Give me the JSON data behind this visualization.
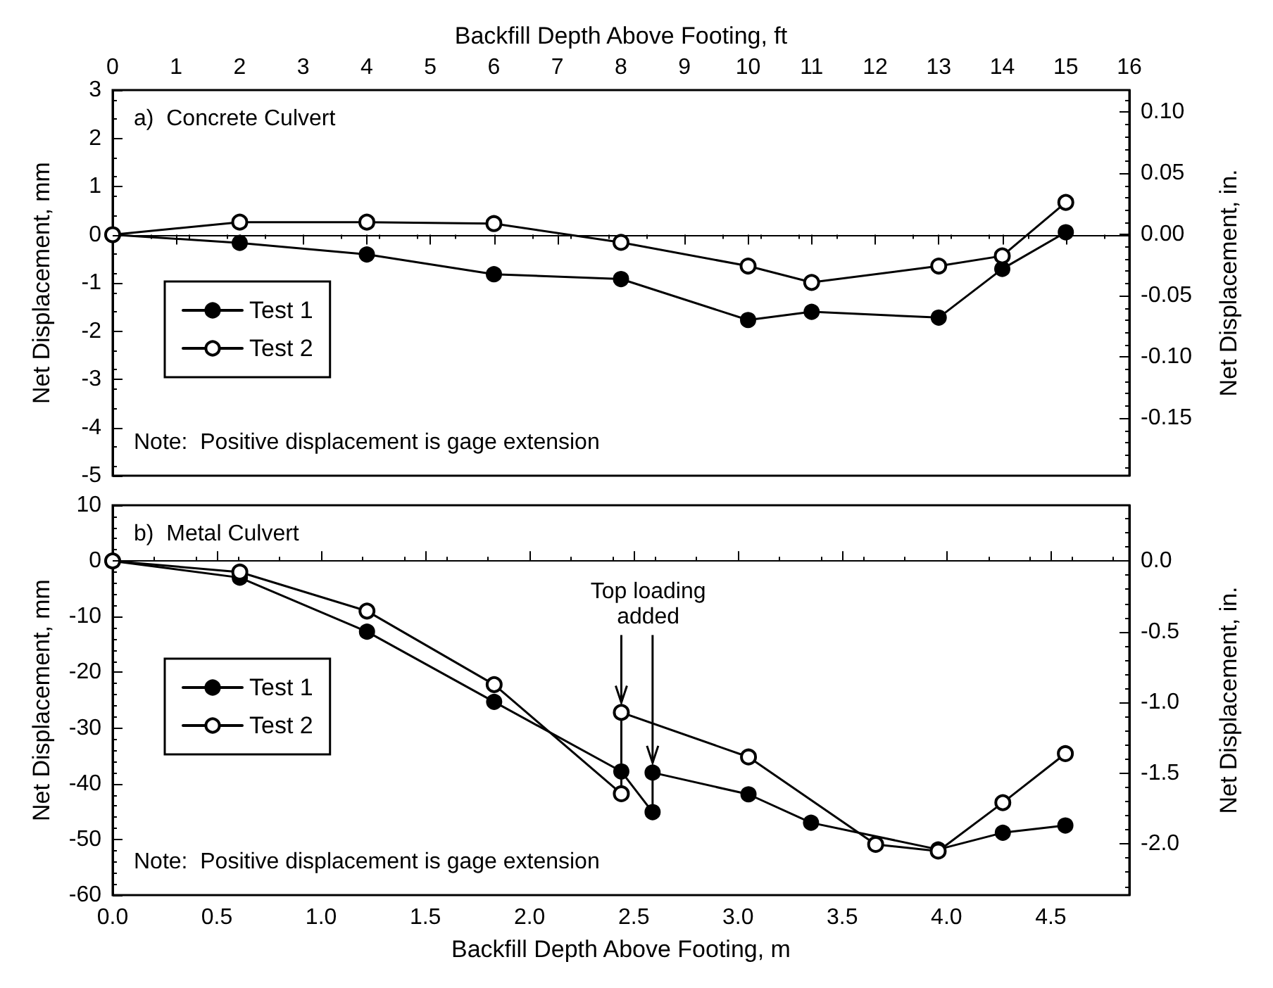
{
  "chart_data": [
    {
      "type": "line",
      "xlabel": "Backfill Depth Above Footing, ft",
      "ylabel": "Net Displacement, mm",
      "y2label": "Net Displacement, in.",
      "x": [
        0,
        2,
        4,
        6,
        8,
        10,
        11,
        13,
        14,
        15
      ],
      "series": [
        {
          "name": "Test 1",
          "color": "#000000",
          "marker": "circle",
          "values": [
            0,
            -0.17,
            -0.41,
            -0.82,
            -0.92,
            -1.77,
            -1.6,
            -1.72,
            -0.71,
            0.05
          ]
        },
        {
          "name": "Test 2",
          "color": "#000000",
          "marker": "emptyCircle",
          "values": [
            0,
            0.26,
            0.26,
            0.23,
            -0.16,
            -0.65,
            -0.99,
            -0.65,
            -0.44,
            0.67
          ]
        }
      ],
      "xlim": [
        0,
        16
      ],
      "xticks": [
        0,
        1,
        2,
        3,
        4,
        5,
        6,
        7,
        8,
        9,
        10,
        11,
        12,
        13,
        14,
        15,
        16
      ],
      "ylim": [
        -5,
        3
      ],
      "yticks": [
        -5,
        -4,
        -3,
        -2,
        -1,
        0,
        1,
        2,
        3
      ],
      "y2lim": [
        -0.197,
        0.118
      ],
      "y2ticks": [
        -0.15,
        {
          "value": -0.1,
          "label": "-0.10"
        },
        -0.05,
        {
          "value": 0,
          "label": "0.00"
        },
        0.05,
        {
          "value": 0.1,
          "label": "0.10"
        }
      ],
      "ref_lines": [
        {
          "axis": "y",
          "value": 0
        }
      ],
      "annotations": [
        "a)  Concrete Culvert",
        "Note:  Positive displacement is gage extension"
      ],
      "legend": "left",
      "grid": false,
      "line_style": "solid"
    },
    {
      "type": "line",
      "xlabel": "Backfill Depth Above Footing, m",
      "ylabel": "Net Displacement, mm",
      "y2label": "Net Displacement, in.",
      "series": [
        {
          "name": "Test 1",
          "color": "#000000",
          "marker": "circle",
          "x": [
            0,
            0.61,
            1.22,
            1.83,
            2.44,
            2.59,
            2.59,
            3.05,
            3.35,
            3.96,
            4.27,
            4.57
          ],
          "values": [
            0,
            -3,
            -12.7,
            -25.3,
            -37.8,
            -45.1,
            -38,
            -41.9,
            -47,
            -51.8,
            -48.8,
            -47.5
          ]
        },
        {
          "name": "Test 2",
          "color": "#000000",
          "marker": "emptyCircle",
          "x": [
            0,
            0.61,
            1.22,
            1.83,
            2.44,
            2.44,
            3.05,
            3.66,
            3.96,
            4.27,
            4.57
          ],
          "values": [
            0,
            -2,
            -9,
            -22.2,
            -41.8,
            -27.2,
            -35.2,
            -50.9,
            -52.1,
            -43.4,
            -34.6
          ]
        }
      ],
      "xlim": [
        0,
        4.877
      ],
      "xticks": [
        {
          "value": 0,
          "label": "0.0"
        },
        0.5,
        {
          "value": 1,
          "label": "1.0"
        },
        1.5,
        {
          "value": 2,
          "label": "2.0"
        },
        2.5,
        {
          "value": 3,
          "label": "3.0"
        },
        3.5,
        {
          "value": 4,
          "label": "4.0"
        },
        4.5
      ],
      "ylim": [
        -60,
        10
      ],
      "yticks": [
        -60,
        -50,
        -40,
        -30,
        -20,
        -10,
        0,
        10
      ],
      "y2lim": [
        -2.362,
        0.394
      ],
      "y2ticks": [
        {
          "value": -2,
          "label": "-2.0"
        },
        -1.5,
        {
          "value": -1,
          "label": "-1.0"
        },
        -0.5,
        {
          "value": 0,
          "label": "0.0"
        }
      ],
      "ref_lines": [
        {
          "axis": "y",
          "value": 0
        }
      ],
      "annotations": [
        "b)  Metal Culvert",
        "Note:  Positive displacement is gage extension",
        {
          "text": "Top loading added",
          "x": 2.44,
          "y": -27.2
        }
      ],
      "legend": "left",
      "grid": false,
      "line_style": "solid"
    }
  ]
}
